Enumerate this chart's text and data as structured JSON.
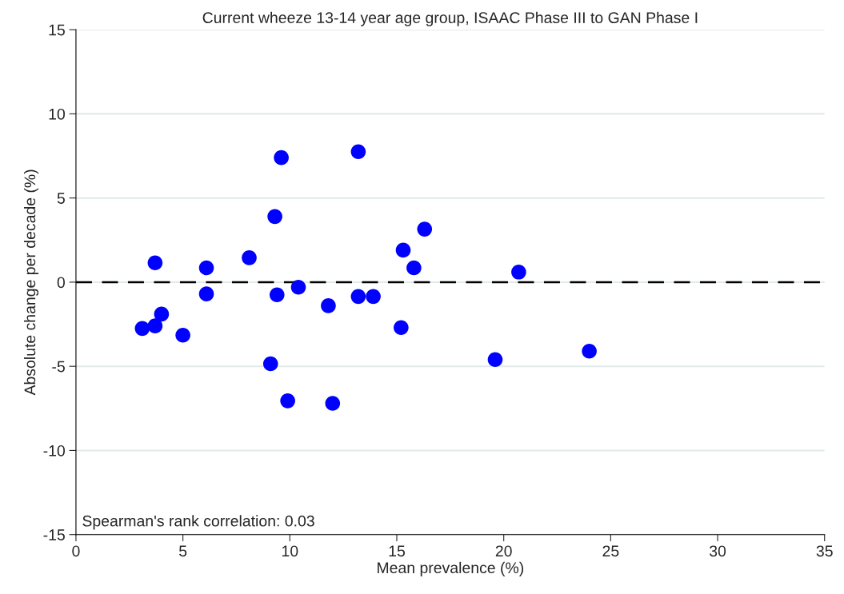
{
  "chart_data": {
    "type": "scatter",
    "title": "Current wheeze 13-14 year age group, ISAAC Phase III to GAN Phase I",
    "xlabel": "Mean prevalence (%)",
    "ylabel": "Absolute change per decade (%)",
    "x": [
      3.1,
      3.7,
      3.7,
      4.0,
      5.0,
      6.1,
      6.1,
      8.1,
      9.1,
      9.3,
      9.4,
      9.6,
      9.9,
      10.4,
      11.8,
      12.0,
      13.2,
      13.2,
      13.9,
      15.2,
      15.3,
      15.8,
      16.3,
      19.6,
      20.7,
      24.0
    ],
    "series": [
      {
        "color": "#0000ff",
        "values": [
          -2.75,
          -2.6,
          1.15,
          -1.9,
          -3.15,
          0.85,
          -0.7,
          1.45,
          -4.85,
          3.9,
          -0.75,
          7.4,
          -7.05,
          -0.3,
          -1.4,
          -7.2,
          7.75,
          -0.85,
          -0.85,
          -2.7,
          1.9,
          0.85,
          3.15,
          -4.6,
          0.6,
          -4.1
        ]
      }
    ],
    "xlim": [
      0,
      35
    ],
    "xticks": [
      0,
      5,
      10,
      15,
      20,
      25,
      30,
      35
    ],
    "ylim": [
      -15,
      15
    ],
    "yticks": [
      -15,
      -10,
      -5,
      0,
      5,
      10,
      15
    ],
    "grid": "y",
    "marker": "circle",
    "legend": false,
    "ref_lines": [
      {
        "axis": "y",
        "value": 0,
        "color": "#000000",
        "line_style": "dashed"
      }
    ],
    "annotations": [
      "Spearman's rank correlation: 0.03"
    ]
  }
}
